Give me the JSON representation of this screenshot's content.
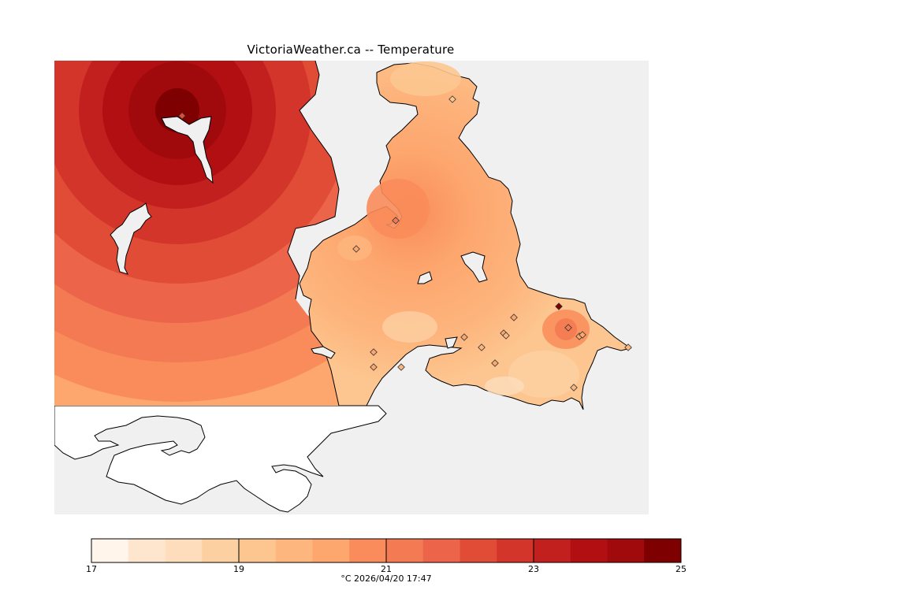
{
  "title": "VictoriaWeather.ca -- Temperature",
  "legend": {
    "unit": "°C",
    "timestamp": "2026/04/20 17:47",
    "min": 17,
    "max": 25,
    "tick_labels": [
      "17",
      "19",
      "21",
      "23",
      "25"
    ],
    "colors": [
      "#fff5eb",
      "#fee6ce",
      "#fdddbb",
      "#fdd0a2",
      "#fdc690",
      "#fdb67e",
      "#fda66e",
      "#f98c5a",
      "#f37a52",
      "#ec6449",
      "#e14c36",
      "#d3352a",
      "#c2201f",
      "#b20f13",
      "#a00a0c",
      "#7f0000"
    ]
  },
  "colors": {
    "sea": "#f0f0f0",
    "nodata_land": "#ffffff",
    "coast": "#000000"
  },
  "stations": [
    {
      "temp": 22.2
    },
    {
      "temp": 21.4
    },
    {
      "temp": 20.2
    },
    {
      "temp": 19.4
    },
    {
      "temp": 20.1
    },
    {
      "temp": 20.0
    },
    {
      "temp": 19.9
    },
    {
      "temp": 20.0
    },
    {
      "temp": 19.8
    },
    {
      "temp": 20.0
    },
    {
      "temp": 19.8
    },
    {
      "temp": 20.2
    },
    {
      "temp": 25.0
    },
    {
      "temp": 21.1
    },
    {
      "temp": 20.3
    },
    {
      "temp": 20.4
    },
    {
      "temp": 20.1
    },
    {
      "temp": 19.9
    },
    {
      "temp": 19.6
    }
  ]
}
